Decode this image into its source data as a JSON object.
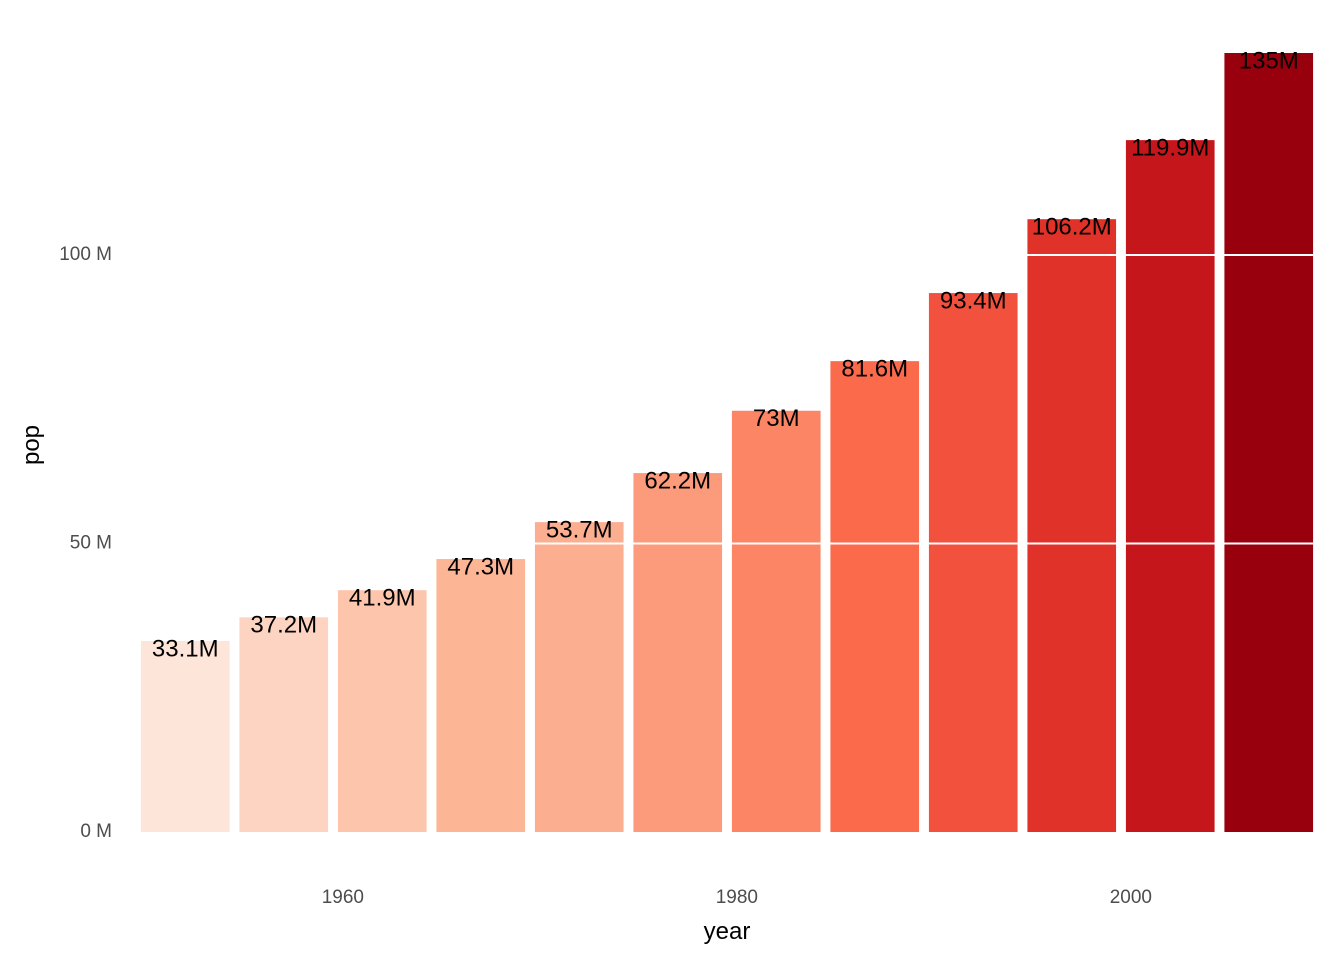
{
  "chart_data": {
    "type": "bar",
    "xlabel": "year",
    "ylabel": "pop",
    "x": [
      1952,
      1957,
      1962,
      1967,
      1972,
      1977,
      1982,
      1987,
      1992,
      1997,
      2002,
      2007
    ],
    "values": [
      33.1,
      37.2,
      41.9,
      47.3,
      53.7,
      62.2,
      73.0,
      81.6,
      93.4,
      106.2,
      119.9,
      135.0
    ],
    "value_labels": [
      "33.1M",
      "37.2M",
      "41.9M",
      "47.3M",
      "53.7M",
      "62.2M",
      "73M",
      "81.6M",
      "93.4M",
      "106.2M",
      "119.9M",
      "135M"
    ],
    "colors": [
      "#fee5d9",
      "#fdd4c2",
      "#fcc5ac",
      "#fcb595",
      "#fcae91",
      "#fc9b7b",
      "#fb8565",
      "#fb6a4a",
      "#f1513d",
      "#e03228",
      "#c5161c",
      "#99000d"
    ],
    "x_ticks": [
      1960,
      1980,
      2000
    ],
    "x_tick_labels": [
      "1960",
      "1980",
      "2000"
    ],
    "y_ticks": [
      0,
      50,
      100
    ],
    "y_tick_labels": [
      "0 M",
      "50 M",
      "100 M"
    ],
    "xlim": [
      1949.5,
      2009.5
    ],
    "ylim": [
      0,
      135
    ],
    "grid": true,
    "grid_over_bars": true,
    "legend": "none"
  }
}
